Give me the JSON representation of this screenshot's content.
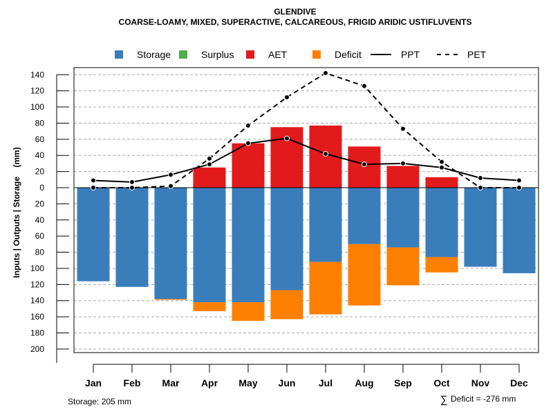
{
  "chart_data": {
    "type": "bar",
    "title": "GLENDIVE",
    "subtitle": "COARSE-LOAMY, MIXED, SUPERACTIVE, CALCAREOUS, FRIGID ARIDIC USTIFLUVENTS",
    "ylabel": "Inputs | Outputs | Storage    (mm)",
    "categories": [
      "Jan",
      "Feb",
      "Mar",
      "Apr",
      "May",
      "Jun",
      "Jul",
      "Aug",
      "Sep",
      "Oct",
      "Nov",
      "Dec"
    ],
    "ylim": [
      -205,
      145
    ],
    "y_ticks": [
      140,
      120,
      100,
      80,
      60,
      40,
      20,
      0,
      -20,
      -40,
      -60,
      -80,
      -100,
      -120,
      -140,
      -160,
      -180,
      -200
    ],
    "y_tick_labels": [
      "140",
      "120",
      "100",
      "80",
      "60",
      "40",
      "20",
      "0",
      "20",
      "40",
      "60",
      "80",
      "100",
      "120",
      "140",
      "160",
      "180",
      "200"
    ],
    "legend": {
      "position": "top",
      "items": [
        {
          "label": "Storage",
          "kind": "box",
          "color": "#3a7dbb"
        },
        {
          "label": "Surplus",
          "kind": "box",
          "color": "#4daf4a"
        },
        {
          "label": "AET",
          "kind": "box",
          "color": "#e31a1c"
        },
        {
          "label": "Deficit",
          "kind": "box",
          "color": "#ff7f00"
        },
        {
          "label": "PPT",
          "kind": "solid-line",
          "color": "#000000"
        },
        {
          "label": "PET",
          "kind": "dashed-line",
          "color": "#000000"
        }
      ]
    },
    "series": [
      {
        "name": "Storage",
        "color": "#3a7dbb",
        "values": [
          116,
          123,
          138,
          142,
          142,
          127,
          92,
          70,
          74,
          86,
          98,
          106
        ]
      },
      {
        "name": "Deficit",
        "color": "#ff7f00",
        "values": [
          0,
          0,
          1,
          11,
          23,
          36,
          65,
          76,
          47,
          19,
          0,
          0
        ]
      },
      {
        "name": "Surplus",
        "color": "#4daf4a",
        "values": [
          0,
          0,
          0,
          0,
          0,
          0,
          0,
          0,
          0,
          0,
          0,
          0
        ]
      },
      {
        "name": "AET",
        "color": "#e31a1c",
        "values": [
          0,
          0,
          0,
          25,
          55,
          75,
          77,
          51,
          27,
          13,
          0,
          0
        ]
      },
      {
        "name": "PPT",
        "color": "#000000",
        "values": [
          9,
          7,
          16,
          29,
          55,
          61,
          42,
          29,
          30,
          25,
          12,
          9
        ]
      },
      {
        "name": "PET",
        "color": "#000000",
        "values": [
          0,
          0,
          2,
          36,
          77,
          112,
          142,
          126,
          73,
          32,
          0,
          0
        ]
      }
    ],
    "grid": true
  },
  "footer": {
    "storage": "Storage: 205 mm",
    "deficit_symbol": "∑",
    "deficit": "Deficit = -276 mm"
  }
}
